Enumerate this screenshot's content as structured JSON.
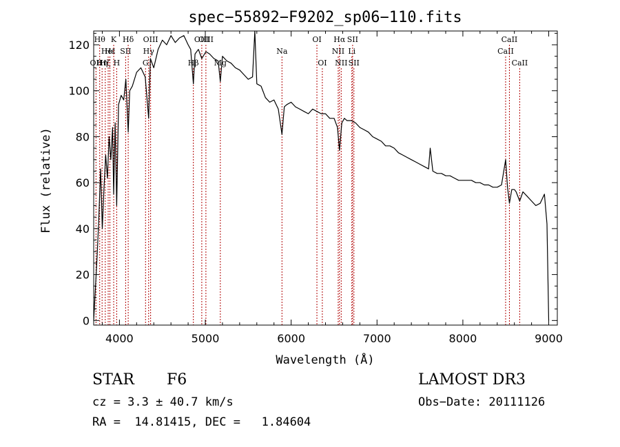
{
  "chart_data": {
    "type": "line",
    "title": "spec−55892−F9202_sp06−110.fits",
    "xlabel": "Wavelength (Å)",
    "ylabel": "Flux (relative)",
    "xlim": [
      3700,
      9100
    ],
    "ylim": [
      -2,
      126
    ],
    "xticks": [
      4000,
      5000,
      6000,
      7000,
      8000,
      9000
    ],
    "yticks": [
      0,
      20,
      40,
      60,
      80,
      100,
      120
    ],
    "series": [
      {
        "name": "spectrum",
        "x": [
          3700,
          3740,
          3760,
          3780,
          3800,
          3820,
          3840,
          3860,
          3880,
          3900,
          3920,
          3933,
          3950,
          3968,
          3990,
          4020,
          4050,
          4075,
          4102,
          4120,
          4150,
          4200,
          4250,
          4300,
          4340,
          4360,
          4400,
          4450,
          4500,
          4550,
          4600,
          4650,
          4700,
          4750,
          4800,
          4830,
          4861,
          4880,
          4920,
          4959,
          5007,
          5050,
          5100,
          5150,
          5175,
          5200,
          5250,
          5300,
          5350,
          5400,
          5450,
          5500,
          5550,
          5577,
          5600,
          5650,
          5700,
          5750,
          5800,
          5850,
          5893,
          5920,
          5950,
          6000,
          6050,
          6100,
          6150,
          6200,
          6250,
          6300,
          6350,
          6400,
          6450,
          6500,
          6540,
          6563,
          6590,
          6620,
          6650,
          6700,
          6750,
          6800,
          6850,
          6900,
          6950,
          7000,
          7050,
          7100,
          7150,
          7200,
          7250,
          7300,
          7350,
          7400,
          7450,
          7500,
          7550,
          7600,
          7620,
          7650,
          7700,
          7750,
          7800,
          7850,
          7900,
          7950,
          8000,
          8050,
          8100,
          8150,
          8200,
          8250,
          8300,
          8350,
          8400,
          8450,
          8498,
          8520,
          8542,
          8570,
          8600,
          8620,
          8662,
          8700,
          8750,
          8800,
          8850,
          8900,
          8950,
          8980,
          9000
        ],
        "y": [
          0,
          28,
          45,
          66,
          40,
          58,
          72,
          62,
          80,
          70,
          84,
          55,
          86,
          50,
          94,
          98,
          96,
          105,
          82,
          100,
          102,
          108,
          110,
          106,
          88,
          114,
          110,
          118,
          122,
          120,
          124,
          121,
          123,
          124,
          120,
          118,
          103,
          116,
          118,
          114,
          117,
          116,
          114,
          113,
          104,
          115,
          113,
          112,
          110,
          109,
          107,
          105,
          106,
          128,
          103,
          102,
          97,
          95,
          96,
          92,
          81,
          93,
          94,
          95,
          93,
          92,
          91,
          90,
          92,
          91,
          90,
          90,
          88,
          88,
          84,
          74,
          86,
          88,
          87,
          87,
          86,
          84,
          83,
          82,
          80,
          79,
          78,
          76,
          76,
          75,
          73,
          72,
          71,
          70,
          69,
          68,
          67,
          66,
          75,
          65,
          64,
          64,
          63,
          63,
          62,
          61,
          61,
          61,
          61,
          60,
          60,
          59,
          59,
          58,
          58,
          59,
          70,
          58,
          51,
          57,
          57,
          56,
          52,
          56,
          54,
          52,
          50,
          51,
          55,
          42,
          0
        ]
      }
    ],
    "line_markers": [
      {
        "wavelength": 3727,
        "label": "OII",
        "row": 3
      },
      {
        "wavelength": 3770,
        "label": "Hθ",
        "row": 1
      },
      {
        "wavelength": 3798,
        "label": "Hη",
        "row": 3
      },
      {
        "wavelength": 3835,
        "label": "Hζ",
        "row": 3
      },
      {
        "wavelength": 3869,
        "label": "HeI",
        "row": 2
      },
      {
        "wavelength": 3889,
        "label": "Hε",
        "row": 2
      },
      {
        "wavelength": 3933,
        "label": "K",
        "row": 1
      },
      {
        "wavelength": 3968,
        "label": "H",
        "row": 3
      },
      {
        "wavelength": 4072,
        "label": "SII",
        "row": 2
      },
      {
        "wavelength": 4102,
        "label": "Hδ",
        "row": 1
      },
      {
        "wavelength": 4304,
        "label": "G",
        "row": 3
      },
      {
        "wavelength": 4340,
        "label": "Hγ",
        "row": 2
      },
      {
        "wavelength": 4363,
        "label": "OIII",
        "row": 1
      },
      {
        "wavelength": 4861,
        "label": "Hβ",
        "row": 3
      },
      {
        "wavelength": 4959,
        "label": "OIII",
        "row": 1
      },
      {
        "wavelength": 5007,
        "label": "OIII",
        "row": 1
      },
      {
        "wavelength": 5175,
        "label": "Mg",
        "row": 3
      },
      {
        "wavelength": 5893,
        "label": "Na",
        "row": 2
      },
      {
        "wavelength": 6300,
        "label": "OI",
        "row": 1
      },
      {
        "wavelength": 6363,
        "label": "OI",
        "row": 3
      },
      {
        "wavelength": 6548,
        "label": "NII",
        "row": 2
      },
      {
        "wavelength": 6563,
        "label": "Hα",
        "row": 1
      },
      {
        "wavelength": 6583,
        "label": "NII",
        "row": 3
      },
      {
        "wavelength": 6707,
        "label": "Li",
        "row": 2
      },
      {
        "wavelength": 6716,
        "label": "SII",
        "row": 1
      },
      {
        "wavelength": 6731,
        "label": "SII",
        "row": 3
      },
      {
        "wavelength": 8498,
        "label": "CaII",
        "row": 2
      },
      {
        "wavelength": 8542,
        "label": "CaII",
        "row": 1
      },
      {
        "wavelength": 8662,
        "label": "CaII",
        "row": 3
      }
    ]
  },
  "info": {
    "object_type": "STAR",
    "subclass": "F6",
    "velocity": "cz = 3.3 ± 40.7 km/s",
    "coordinates": "RA =  14.81415, DEC =   1.84604",
    "survey": "LAMOST DR3",
    "obs_date": "Obs−Date: 20111126"
  },
  "colors": {
    "spectrum": "#000000",
    "line_marker": "#b00000",
    "axis": "#000000"
  }
}
